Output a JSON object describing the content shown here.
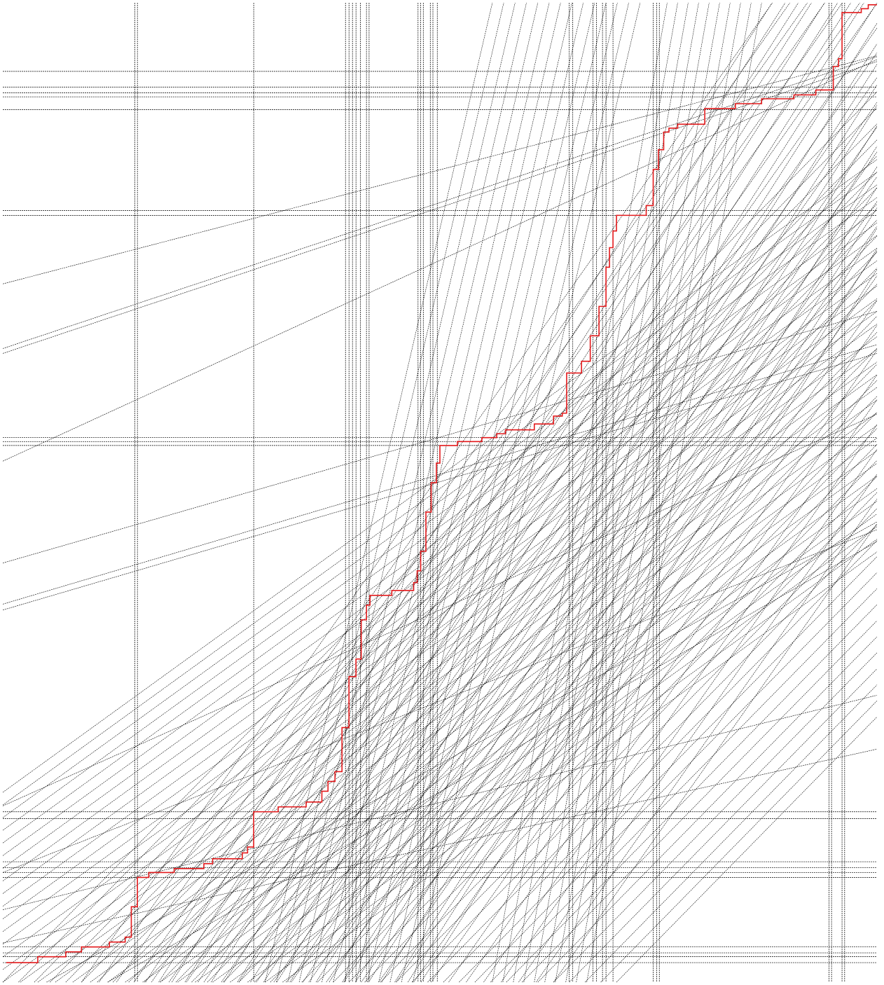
{
  "diagram": {
    "background": "#ffffff",
    "line_color": "#000000",
    "step_color": "#e31a1c",
    "x_range": [
      0,
      1
    ],
    "y_range": [
      0,
      1
    ],
    "vertical_lines": [
      0.151,
      0.154,
      0.287,
      0.392,
      0.396,
      0.4,
      0.404,
      0.409,
      0.416,
      0.419,
      0.475,
      0.478,
      0.481,
      0.489,
      0.492,
      0.497,
      0.648,
      0.652,
      0.675,
      0.679,
      0.686,
      0.69,
      0.698,
      0.744,
      0.748,
      0.751,
      0.945,
      0.948,
      0.96,
      0.963
    ],
    "horizontal_lines": [
      0.02,
      0.026,
      0.03,
      0.036,
      0.107,
      0.112,
      0.117,
      0.123,
      0.167,
      0.174,
      0.548,
      0.552,
      0.556,
      0.783,
      0.788,
      0.891,
      0.904,
      0.908,
      0.914,
      0.93
    ],
    "line_families": [
      {
        "x0": 0.0,
        "y0": 0.0,
        "x1": 0.44,
        "y1": 0.4,
        "count": 40,
        "dx": 0.018
      },
      {
        "x0": 0.09,
        "y0": 0.0,
        "x1": 0.58,
        "y1": 0.62,
        "count": 28,
        "dx": 0.02
      },
      {
        "x0": 0.3,
        "y0": 0.0,
        "x1": 0.56,
        "y1": 1.0,
        "count": 14,
        "dx": 0.013
      },
      {
        "x0": 0.35,
        "y0": 0.42,
        "x1": 1.0,
        "y1": 0.84,
        "count": 32,
        "dx": 0.02
      },
      {
        "x0": 0.45,
        "y0": 0.4,
        "x1": 0.88,
        "y1": 1.0,
        "count": 22,
        "dx": 0.015
      },
      {
        "x0": 0.56,
        "y0": 0.0,
        "x1": 0.76,
        "y1": 1.0,
        "count": 10,
        "dx": 0.012
      }
    ],
    "single_lines": [
      [
        0.0,
        0.713,
        1.0,
        0.946
      ],
      [
        0.0,
        0.647,
        1.0,
        0.945
      ],
      [
        0.0,
        0.642,
        1.0,
        0.94
      ],
      [
        0.0,
        0.428,
        1.0,
        0.685
      ],
      [
        0.0,
        0.386,
        1.0,
        0.651
      ],
      [
        0.0,
        0.38,
        1.0,
        0.642
      ],
      [
        0.0,
        0.532,
        1.0,
        0.942
      ],
      [
        0.0,
        0.18,
        1.0,
        0.58
      ],
      [
        0.0,
        0.112,
        1.0,
        0.462
      ],
      [
        0.0,
        0.074,
        1.0,
        0.293
      ],
      [
        0.0,
        0.04,
        1.0,
        0.238
      ],
      [
        0.05,
        0.0,
        1.0,
        0.47
      ],
      [
        0.12,
        0.0,
        1.0,
        0.45
      ]
    ],
    "step_series": [
      [
        0.004,
        0.02
      ],
      [
        0.04,
        0.02
      ],
      [
        0.04,
        0.026
      ],
      [
        0.072,
        0.026
      ],
      [
        0.072,
        0.031
      ],
      [
        0.09,
        0.031
      ],
      [
        0.09,
        0.036
      ],
      [
        0.122,
        0.036
      ],
      [
        0.122,
        0.041
      ],
      [
        0.14,
        0.041
      ],
      [
        0.14,
        0.046
      ],
      [
        0.147,
        0.046
      ],
      [
        0.147,
        0.077
      ],
      [
        0.154,
        0.077
      ],
      [
        0.154,
        0.107
      ],
      [
        0.167,
        0.107
      ],
      [
        0.167,
        0.112
      ],
      [
        0.196,
        0.112
      ],
      [
        0.196,
        0.116
      ],
      [
        0.23,
        0.116
      ],
      [
        0.23,
        0.121
      ],
      [
        0.24,
        0.121
      ],
      [
        0.24,
        0.126
      ],
      [
        0.274,
        0.126
      ],
      [
        0.274,
        0.132
      ],
      [
        0.28,
        0.132
      ],
      [
        0.28,
        0.138
      ],
      [
        0.287,
        0.138
      ],
      [
        0.287,
        0.174
      ],
      [
        0.315,
        0.174
      ],
      [
        0.315,
        0.179
      ],
      [
        0.347,
        0.179
      ],
      [
        0.347,
        0.184
      ],
      [
        0.365,
        0.184
      ],
      [
        0.365,
        0.195
      ],
      [
        0.372,
        0.195
      ],
      [
        0.372,
        0.205
      ],
      [
        0.38,
        0.205
      ],
      [
        0.38,
        0.215
      ],
      [
        0.388,
        0.215
      ],
      [
        0.388,
        0.26
      ],
      [
        0.396,
        0.26
      ],
      [
        0.396,
        0.312
      ],
      [
        0.404,
        0.312
      ],
      [
        0.404,
        0.33
      ],
      [
        0.41,
        0.33
      ],
      [
        0.41,
        0.37
      ],
      [
        0.416,
        0.37
      ],
      [
        0.416,
        0.385
      ],
      [
        0.42,
        0.385
      ],
      [
        0.42,
        0.395
      ],
      [
        0.445,
        0.395
      ],
      [
        0.445,
        0.4
      ],
      [
        0.47,
        0.4
      ],
      [
        0.47,
        0.408
      ],
      [
        0.474,
        0.408
      ],
      [
        0.474,
        0.42
      ],
      [
        0.478,
        0.42
      ],
      [
        0.478,
        0.44
      ],
      [
        0.484,
        0.44
      ],
      [
        0.484,
        0.48
      ],
      [
        0.49,
        0.48
      ],
      [
        0.49,
        0.51
      ],
      [
        0.496,
        0.51
      ],
      [
        0.496,
        0.53
      ],
      [
        0.5,
        0.53
      ],
      [
        0.5,
        0.548
      ],
      [
        0.52,
        0.548
      ],
      [
        0.52,
        0.552
      ],
      [
        0.548,
        0.552
      ],
      [
        0.548,
        0.556
      ],
      [
        0.565,
        0.556
      ],
      [
        0.565,
        0.56
      ],
      [
        0.575,
        0.56
      ],
      [
        0.575,
        0.564
      ],
      [
        0.608,
        0.564
      ],
      [
        0.608,
        0.57
      ],
      [
        0.63,
        0.57
      ],
      [
        0.63,
        0.578
      ],
      [
        0.64,
        0.578
      ],
      [
        0.64,
        0.581
      ],
      [
        0.645,
        0.581
      ],
      [
        0.645,
        0.622
      ],
      [
        0.662,
        0.622
      ],
      [
        0.662,
        0.634
      ],
      [
        0.672,
        0.634
      ],
      [
        0.672,
        0.66
      ],
      [
        0.682,
        0.66
      ],
      [
        0.682,
        0.69
      ],
      [
        0.69,
        0.69
      ],
      [
        0.69,
        0.73
      ],
      [
        0.694,
        0.73
      ],
      [
        0.694,
        0.75
      ],
      [
        0.698,
        0.75
      ],
      [
        0.698,
        0.767
      ],
      [
        0.702,
        0.767
      ],
      [
        0.702,
        0.783
      ],
      [
        0.736,
        0.783
      ],
      [
        0.736,
        0.793
      ],
      [
        0.744,
        0.793
      ],
      [
        0.744,
        0.83
      ],
      [
        0.75,
        0.83
      ],
      [
        0.75,
        0.85
      ],
      [
        0.756,
        0.85
      ],
      [
        0.756,
        0.868
      ],
      [
        0.762,
        0.868
      ],
      [
        0.762,
        0.872
      ],
      [
        0.772,
        0.872
      ],
      [
        0.772,
        0.876
      ],
      [
        0.803,
        0.876
      ],
      [
        0.803,
        0.892
      ],
      [
        0.838,
        0.892
      ],
      [
        0.838,
        0.897
      ],
      [
        0.868,
        0.897
      ],
      [
        0.868,
        0.902
      ],
      [
        0.905,
        0.902
      ],
      [
        0.905,
        0.906
      ],
      [
        0.93,
        0.906
      ],
      [
        0.93,
        0.911
      ],
      [
        0.95,
        0.911
      ],
      [
        0.95,
        0.935
      ],
      [
        0.956,
        0.935
      ],
      [
        0.956,
        0.943
      ],
      [
        0.96,
        0.943
      ],
      [
        0.96,
        0.99
      ],
      [
        0.982,
        0.99
      ],
      [
        0.982,
        0.994
      ],
      [
        0.99,
        0.994
      ],
      [
        0.99,
        0.998
      ],
      [
        1.0,
        0.998
      ]
    ]
  }
}
